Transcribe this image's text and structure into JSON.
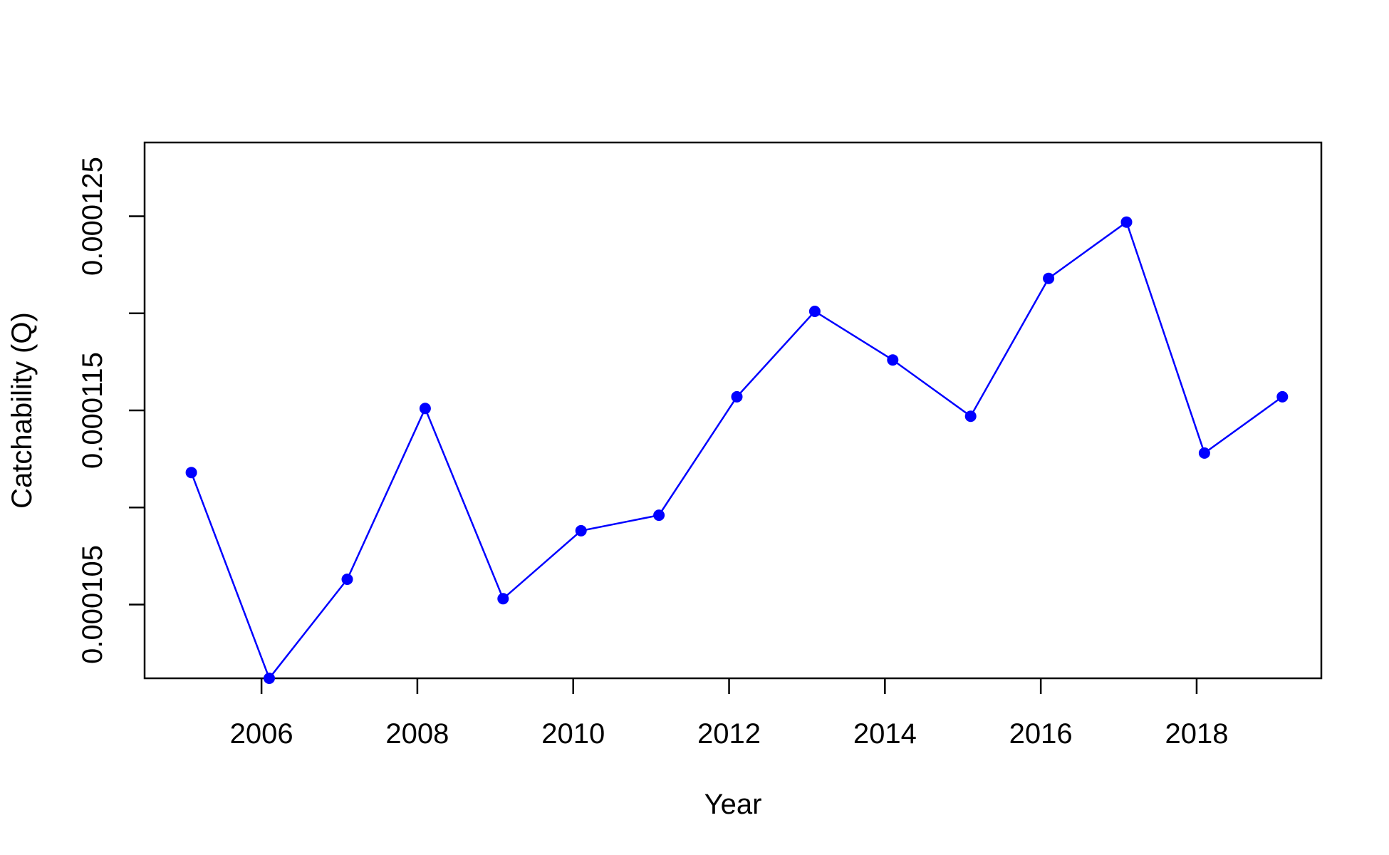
{
  "chart_data": {
    "type": "line",
    "title": "",
    "xlabel": "Year",
    "ylabel": "Catchability (Q)",
    "xlim": [
      2004.5,
      2019.6
    ],
    "ylim": [
      0.0001012,
      0.0001288
    ],
    "x_ticks": [
      2006,
      2008,
      2010,
      2012,
      2014,
      2016,
      2018
    ],
    "x_tick_labels": [
      "2006",
      "2008",
      "2010",
      "2012",
      "2014",
      "2016",
      "2018"
    ],
    "y_ticks": [
      0.000105,
      0.00011,
      0.000115,
      0.00012,
      0.000125
    ],
    "y_tick_labels": [
      "0.000105",
      "",
      "0.000115",
      "",
      "0.000125"
    ],
    "grid": false,
    "legend": "none",
    "series": [
      {
        "color": "#0000ff",
        "x": [
          2005.1,
          2006.1,
          2007.1,
          2008.1,
          2009.1,
          2010.1,
          2011.1,
          2012.1,
          2013.1,
          2014.1,
          2015.1,
          2016.1,
          2017.1,
          2018.1,
          2019.1
        ],
        "values": [
          0.0001118,
          0.0001012,
          0.0001063,
          0.0001151,
          0.0001053,
          0.0001088,
          0.0001096,
          0.0001157,
          0.0001201,
          0.0001176,
          0.0001147,
          0.0001218,
          0.0001247,
          0.0001128,
          0.0001157
        ]
      }
    ]
  }
}
